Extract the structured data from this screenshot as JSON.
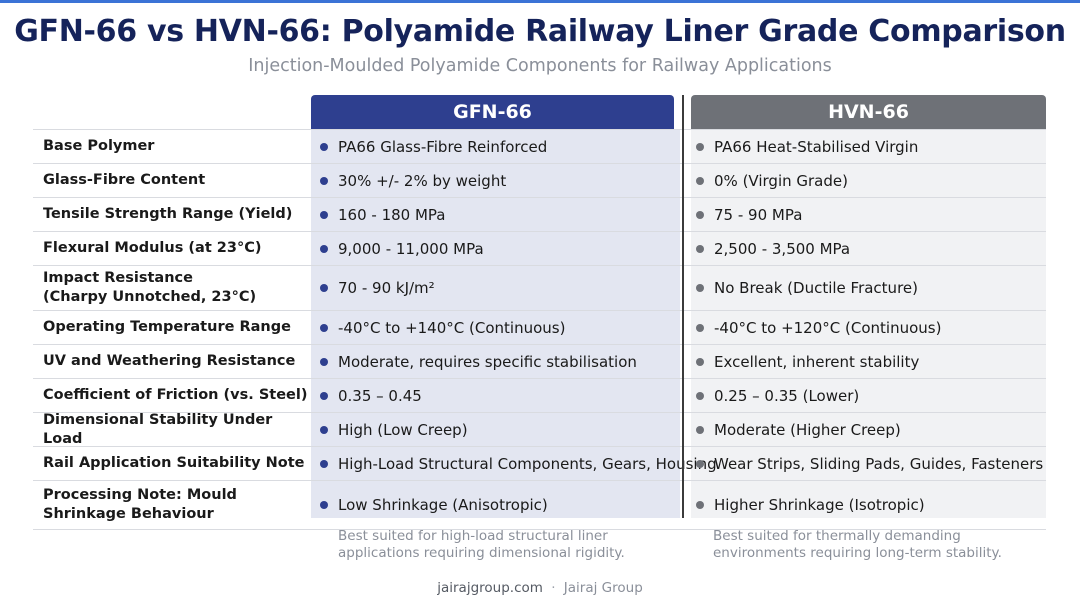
{
  "title": "GFN-66 vs HVN-66: Polyamide Railway Liner Grade Comparison",
  "subtitle": "Injection-Moulded Polyamide Components for Railway Applications",
  "columns": {
    "gfn": "GFN-66",
    "hvn": "HVN-66"
  },
  "colors": {
    "gfn_accent": "#2e3f8f",
    "hvn_accent": "#6e7177",
    "title": "#15235a"
  },
  "rows": [
    {
      "label": "Base Polymer",
      "gfn": "PA66 Glass-Fibre Reinforced",
      "hvn": "PA66 Heat-Stabilised Virgin"
    },
    {
      "label": "Glass-Fibre Content",
      "gfn": "30% +/- 2% by weight",
      "hvn": "0% (Virgin Grade)"
    },
    {
      "label": "Tensile Strength Range (Yield)",
      "gfn": "160 - 180 MPa",
      "hvn": "75 - 90 MPa"
    },
    {
      "label": "Flexural Modulus (at 23°C)",
      "gfn": "9,000 - 11,000 MPa",
      "hvn": "2,500 - 3,500 MPa"
    },
    {
      "label": "Impact Resistance\n(Charpy Unnotched, 23°C)",
      "gfn": "70 - 90 kJ/m²",
      "hvn": "No Break (Ductile Fracture)"
    },
    {
      "label": "Operating Temperature Range",
      "gfn": "-40°C to +140°C (Continuous)",
      "hvn": "-40°C to +120°C (Continuous)"
    },
    {
      "label": "UV and Weathering Resistance",
      "gfn": "Moderate, requires specific stabilisation",
      "hvn": "Excellent, inherent stability"
    },
    {
      "label": "Coefficient of Friction (vs. Steel)",
      "gfn": "0.35 – 0.45",
      "hvn": "0.25 – 0.35 (Lower)"
    },
    {
      "label": "Dimensional Stability Under Load",
      "gfn": "High (Low Creep)",
      "hvn": "Moderate (Higher Creep)"
    },
    {
      "label": "Rail Application Suitability Note",
      "gfn": "High-Load Structural Components, Gears, Housing",
      "hvn": "Wear Strips, Sliding Pads, Guides, Fasteners"
    },
    {
      "label": "Processing Note: Mould\nShrinkage Behaviour",
      "gfn": "Low Shrinkage (Anisotropic)",
      "hvn": "Higher Shrinkage (Isotropic)"
    }
  ],
  "notes": {
    "gfn": "Best suited for high-load structural liner applications requiring dimensional rigidity.",
    "hvn": "Best suited for thermally demanding environments requiring long-term stability."
  },
  "footer": {
    "site": "jairajgroup.com",
    "separator": "·",
    "brand": "Jairaj Group"
  }
}
